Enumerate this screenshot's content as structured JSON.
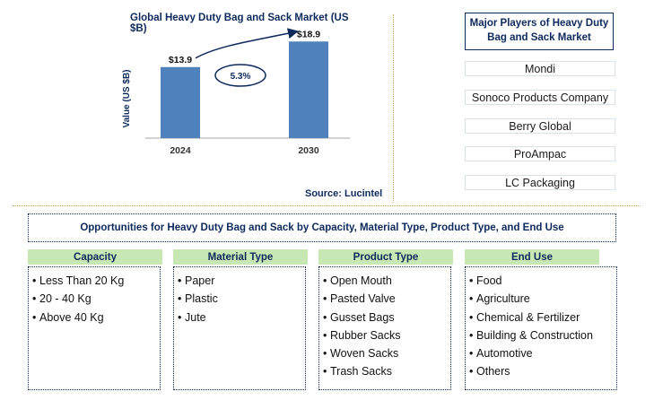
{
  "chart_data": {
    "type": "bar",
    "title": "Global Heavy Duty Bag and Sack Market (US $B)",
    "ylabel": "Value (US $B)",
    "xlabel": "",
    "categories": [
      "2024",
      "2030"
    ],
    "values": [
      13.9,
      18.9
    ],
    "value_labels": [
      "$13.9",
      "$18.9"
    ],
    "ylim": [
      0,
      20
    ],
    "bar_color": "#4f81bd",
    "annotation": {
      "label": "5.3%",
      "from": "2024",
      "to": "2030"
    },
    "grid": false,
    "legend": false
  },
  "source": "Source: Lucintel",
  "players": {
    "title": "Major Players of Heavy Duty Bag and Sack Market",
    "items": [
      "Mondi",
      "Sonoco Products Company",
      "Berry Global",
      "ProAmpac",
      "LC Packaging"
    ]
  },
  "opportunities": {
    "title": "Opportunities for Heavy Duty Bag and Sack by Capacity, Material Type, Product Type, and End Use",
    "columns": [
      {
        "header": "Capacity",
        "items": [
          "Less Than 20 Kg",
          "20 - 40 Kg",
          "Above 40 Kg"
        ]
      },
      {
        "header": "Material Type",
        "items": [
          "Paper",
          "Plastic",
          "Jute"
        ]
      },
      {
        "header": "Product Type",
        "items": [
          "Open Mouth",
          "Pasted Valve",
          "Gusset Bags",
          "Rubber Sacks",
          "Woven Sacks",
          "Trash Sacks"
        ]
      },
      {
        "header": "End Use",
        "items": [
          "Food",
          "Agriculture",
          "Chemical & Fertilizer",
          "Building & Construction",
          "Automotive",
          "Others"
        ]
      }
    ]
  },
  "colors": {
    "navy": "#0d2a5c",
    "bar": "#4f81bd",
    "header_green": "#c7e7b4",
    "divider_gold": "#c9a15a"
  }
}
